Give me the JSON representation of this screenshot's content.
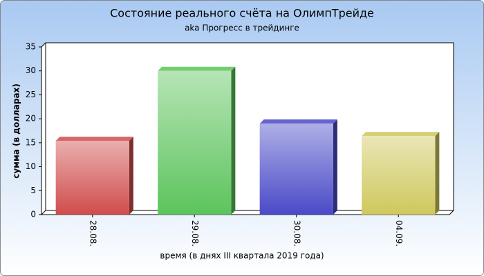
{
  "chart_data": {
    "type": "bar",
    "title": "Состояние реального счёта на ОлимпТрейде",
    "subtitle": "aka Прогресс в трейдинге",
    "y_label": "сумма (в долларах)",
    "x_label": "время (в днях III квартала 2019 года)",
    "categories": [
      "28.08.",
      "29.08.",
      "30.08.",
      "04.09."
    ],
    "values": [
      15.4,
      30,
      19,
      16.4
    ],
    "colors": [
      "#d04c4c",
      "#5cc45c",
      "#4a4ac8",
      "#cfc85c"
    ],
    "ylim": [
      0,
      35
    ],
    "yticks": [
      0,
      5,
      10,
      15,
      20,
      25,
      30,
      35
    ],
    "grid": false
  }
}
